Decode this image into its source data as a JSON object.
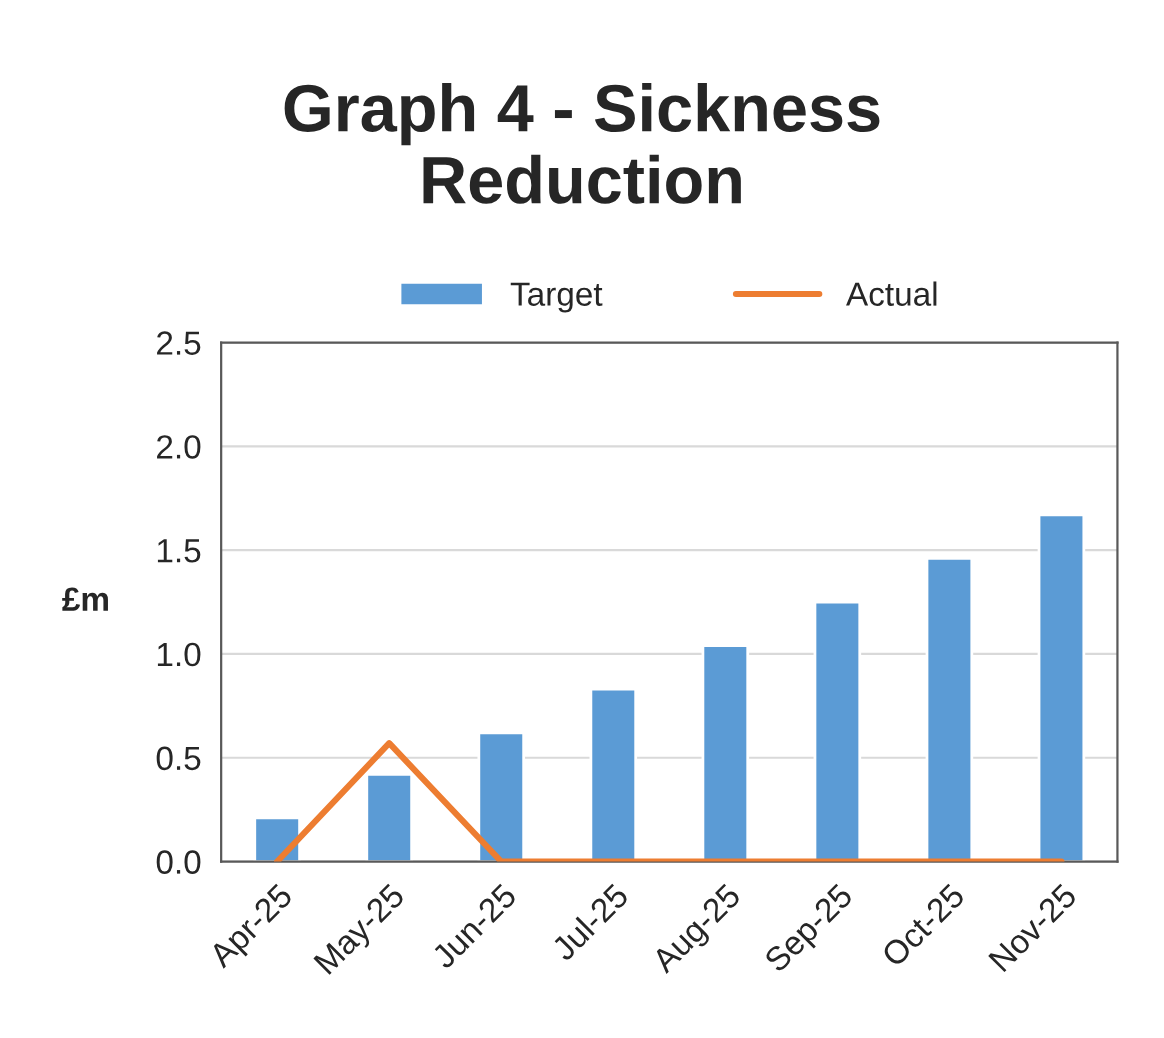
{
  "chart_data": {
    "type": "bar",
    "title": "Graph 4 - Sickness\nReduction",
    "ylabel": "£m",
    "categories": [
      "Apr-25",
      "May-25",
      "Jun-25",
      "Jul-25",
      "Aug-25",
      "Sep-25",
      "Oct-25",
      "Nov-25"
    ],
    "series": [
      {
        "name": "Target",
        "color": "#5b9bd5",
        "values": [
          0.21,
          0.42,
          0.62,
          0.83,
          1.04,
          1.25,
          1.46,
          1.67
        ]
      },
      {
        "name": "Actual",
        "type": "line",
        "color": "#ed7d31",
        "values": [
          0,
          0.57,
          0,
          0,
          0,
          0,
          0,
          0
        ]
      }
    ],
    "ylim": [
      0,
      2.5
    ],
    "yticks": [
      {
        "value": 0,
        "label": "0.0"
      },
      0.5,
      {
        "value": 1,
        "label": "1.0"
      },
      1.5,
      {
        "value": 2,
        "label": "2.0"
      },
      2.5
    ],
    "grid": "y",
    "legend": "top"
  }
}
